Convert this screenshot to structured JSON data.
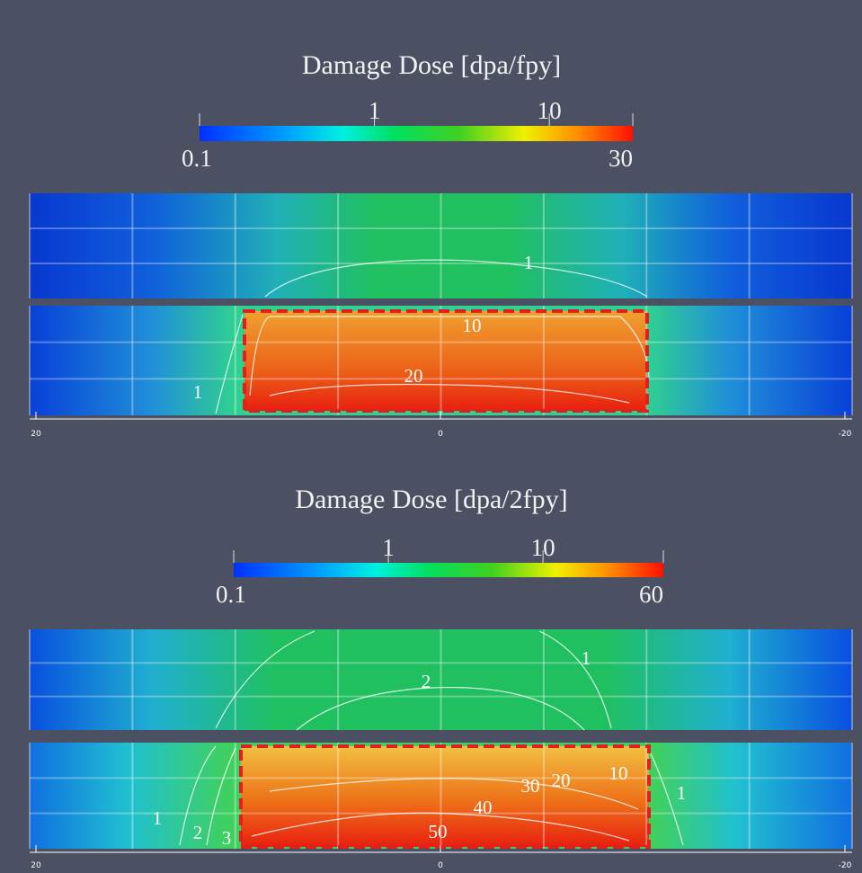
{
  "chart_data": [
    {
      "type": "heatmap",
      "title": "Damage Dose [dpa/fpy]",
      "colorbar_lim": [
        0.1,
        30
      ],
      "colorbar_ticks": [
        0.1,
        1,
        10,
        30
      ],
      "log_scale": true,
      "xlim": [
        20,
        -20
      ],
      "xticks": [
        20,
        0,
        -20
      ],
      "contour_labels": [
        1,
        10,
        20,
        1
      ]
    },
    {
      "type": "heatmap",
      "title": "Damage Dose [dpa/2fpy]",
      "colorbar_lim": [
        0.1,
        60
      ],
      "colorbar_ticks": [
        0.1,
        1,
        10,
        60
      ],
      "log_scale": true,
      "xlim": [
        20,
        -20
      ],
      "xticks": [
        20,
        0,
        -20
      ],
      "contour_labels": [
        1,
        2,
        1,
        2,
        3,
        20,
        10,
        1,
        30,
        40,
        50
      ]
    }
  ]
}
